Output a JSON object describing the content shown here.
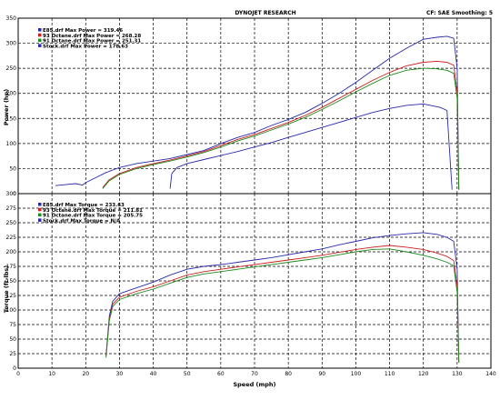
{
  "header": {
    "title": "DYNOJET RESEARCH",
    "right": "CF: SAE  Smoothing: 5"
  },
  "chart_data": [
    {
      "type": "line",
      "ylabel": "Power (hp)",
      "xlim": [
        0,
        140
      ],
      "ylim": [
        0,
        350
      ],
      "xticks": [
        0,
        10,
        20,
        30,
        40,
        50,
        60,
        70,
        80,
        90,
        100,
        110,
        120,
        130,
        140
      ],
      "yticks": [
        0,
        50,
        100,
        150,
        200,
        250,
        300,
        350
      ],
      "grid": true,
      "legend_position": "top-left",
      "series": [
        {
          "name": "E85.drf Max Power = 319.46",
          "color": "#2a2aa8",
          "points": [
            [
              11,
              16
            ],
            [
              14,
              18
            ],
            [
              17,
              20
            ],
            [
              19,
              17
            ],
            [
              20,
              22
            ],
            [
              23,
              32
            ],
            [
              26,
              42
            ],
            [
              30,
              52
            ],
            [
              35,
              60
            ],
            [
              40,
              65
            ],
            [
              45,
              70
            ],
            [
              50,
              78
            ],
            [
              55,
              86
            ],
            [
              60,
              100
            ],
            [
              65,
              112
            ],
            [
              70,
              122
            ],
            [
              75,
              136
            ],
            [
              80,
              148
            ],
            [
              85,
              162
            ],
            [
              90,
              180
            ],
            [
              95,
              200
            ],
            [
              100,
              222
            ],
            [
              105,
              246
            ],
            [
              110,
              270
            ],
            [
              115,
              290
            ],
            [
              120,
              308
            ],
            [
              124,
              312
            ],
            [
              127,
              314
            ],
            [
              129,
              310
            ],
            [
              130,
              250
            ],
            [
              130.5,
              8
            ]
          ]
        },
        {
          "name": "93 Octane.drf Max Power = 268.28",
          "color": "#cc2020",
          "points": [
            [
              25,
              12
            ],
            [
              27,
              28
            ],
            [
              30,
              40
            ],
            [
              35,
              52
            ],
            [
              40,
              60
            ],
            [
              45,
              67
            ],
            [
              50,
              75
            ],
            [
              55,
              84
            ],
            [
              60,
              96
            ],
            [
              65,
              108
            ],
            [
              70,
              118
            ],
            [
              75,
              130
            ],
            [
              80,
              142
            ],
            [
              85,
              156
            ],
            [
              90,
              172
            ],
            [
              95,
              190
            ],
            [
              100,
              208
            ],
            [
              105,
              226
            ],
            [
              110,
              242
            ],
            [
              115,
              255
            ],
            [
              120,
              262
            ],
            [
              124,
              264
            ],
            [
              127,
              262
            ],
            [
              129,
              256
            ],
            [
              130,
              200
            ],
            [
              130.5,
              8
            ]
          ]
        },
        {
          "name": "91 Octane.drf Max Power = 251.31",
          "color": "#208a20",
          "points": [
            [
              25,
              10
            ],
            [
              27,
              26
            ],
            [
              30,
              38
            ],
            [
              35,
              50
            ],
            [
              40,
              58
            ],
            [
              45,
              65
            ],
            [
              50,
              73
            ],
            [
              55,
              82
            ],
            [
              60,
              93
            ],
            [
              65,
              105
            ],
            [
              70,
              115
            ],
            [
              75,
              127
            ],
            [
              80,
              139
            ],
            [
              85,
              152
            ],
            [
              90,
              168
            ],
            [
              95,
              185
            ],
            [
              100,
              203
            ],
            [
              105,
              220
            ],
            [
              110,
              236
            ],
            [
              115,
              246
            ],
            [
              120,
              250
            ],
            [
              124,
              249
            ],
            [
              127,
              246
            ],
            [
              129,
              240
            ],
            [
              130,
              190
            ],
            [
              130.5,
              8
            ]
          ]
        },
        {
          "name": "Stock.drf Max Power = 178.63",
          "color": "#2a2aa8",
          "points": [
            [
              45,
              10
            ],
            [
              45.5,
              40
            ],
            [
              47,
              52
            ],
            [
              50,
              60
            ],
            [
              55,
              68
            ],
            [
              60,
              76
            ],
            [
              65,
              84
            ],
            [
              70,
              93
            ],
            [
              75,
              102
            ],
            [
              80,
              112
            ],
            [
              85,
              122
            ],
            [
              90,
              132
            ],
            [
              95,
              142
            ],
            [
              100,
              152
            ],
            [
              105,
              162
            ],
            [
              110,
              170
            ],
            [
              115,
              176
            ],
            [
              120,
              179
            ],
            [
              125,
              172
            ],
            [
              127,
              166
            ],
            [
              128,
              60
            ],
            [
              128.5,
              8
            ]
          ]
        }
      ]
    },
    {
      "type": "line",
      "ylabel": "Torque (ft-lbs)",
      "xlabel": "Speed (mph)",
      "xlim": [
        0,
        140
      ],
      "ylim": [
        0,
        300
      ],
      "xticks": [
        0,
        10,
        20,
        30,
        40,
        50,
        60,
        70,
        80,
        90,
        100,
        110,
        120,
        130,
        140
      ],
      "yticks": [
        0,
        25,
        50,
        75,
        100,
        125,
        150,
        175,
        200,
        225,
        250,
        275,
        300
      ],
      "grid": true,
      "legend_position": "top-left",
      "series": [
        {
          "name": "E85.drf Max Torque = 233.63",
          "color": "#2a2aa8",
          "points": [
            [
              26,
              22
            ],
            [
              27,
              90
            ],
            [
              28,
              115
            ],
            [
              30,
              128
            ],
            [
              35,
              138
            ],
            [
              40,
              148
            ],
            [
              45,
              160
            ],
            [
              50,
              170
            ],
            [
              55,
              175
            ],
            [
              60,
              178
            ],
            [
              65,
              182
            ],
            [
              70,
              186
            ],
            [
              75,
              190
            ],
            [
              80,
              195
            ],
            [
              85,
              200
            ],
            [
              90,
              205
            ],
            [
              95,
              212
            ],
            [
              100,
              218
            ],
            [
              105,
              224
            ],
            [
              110,
              228
            ],
            [
              115,
              231
            ],
            [
              120,
              233
            ],
            [
              124,
              230
            ],
            [
              127,
              225
            ],
            [
              129,
              218
            ],
            [
              130,
              170
            ],
            [
              130.5,
              10
            ]
          ]
        },
        {
          "name": "93 Octane.drf Max Torque = 211.81",
          "color": "#cc2020",
          "points": [
            [
              26,
              20
            ],
            [
              27,
              85
            ],
            [
              28,
              110
            ],
            [
              30,
              122
            ],
            [
              35,
              132
            ],
            [
              40,
              140
            ],
            [
              45,
              150
            ],
            [
              50,
              160
            ],
            [
              55,
              166
            ],
            [
              60,
              170
            ],
            [
              65,
              174
            ],
            [
              70,
              178
            ],
            [
              75,
              182
            ],
            [
              80,
              186
            ],
            [
              85,
              190
            ],
            [
              90,
              194
            ],
            [
              95,
              199
            ],
            [
              100,
              204
            ],
            [
              105,
              208
            ],
            [
              110,
              211
            ],
            [
              115,
              208
            ],
            [
              120,
              204
            ],
            [
              124,
              198
            ],
            [
              127,
              192
            ],
            [
              129,
              185
            ],
            [
              130,
              140
            ],
            [
              130.5,
              10
            ]
          ]
        },
        {
          "name": "91 Octane.drf Max Torque = 205.75",
          "color": "#208a20",
          "points": [
            [
              26,
              18
            ],
            [
              27,
              82
            ],
            [
              28,
              106
            ],
            [
              30,
              118
            ],
            [
              35,
              128
            ],
            [
              40,
              136
            ],
            [
              45,
              146
            ],
            [
              50,
              156
            ],
            [
              55,
              162
            ],
            [
              60,
              166
            ],
            [
              65,
              170
            ],
            [
              70,
              174
            ],
            [
              75,
              178
            ],
            [
              80,
              182
            ],
            [
              85,
              186
            ],
            [
              90,
              190
            ],
            [
              95,
              195
            ],
            [
              100,
              200
            ],
            [
              105,
              204
            ],
            [
              110,
              205
            ],
            [
              115,
              200
            ],
            [
              120,
              194
            ],
            [
              124,
              188
            ],
            [
              127,
              182
            ],
            [
              129,
              176
            ],
            [
              130,
              130
            ],
            [
              130.5,
              10
            ]
          ]
        },
        {
          "name": "Stock.drf Max Torque = N/A",
          "color": "#2a2aa8",
          "points": []
        }
      ]
    }
  ]
}
